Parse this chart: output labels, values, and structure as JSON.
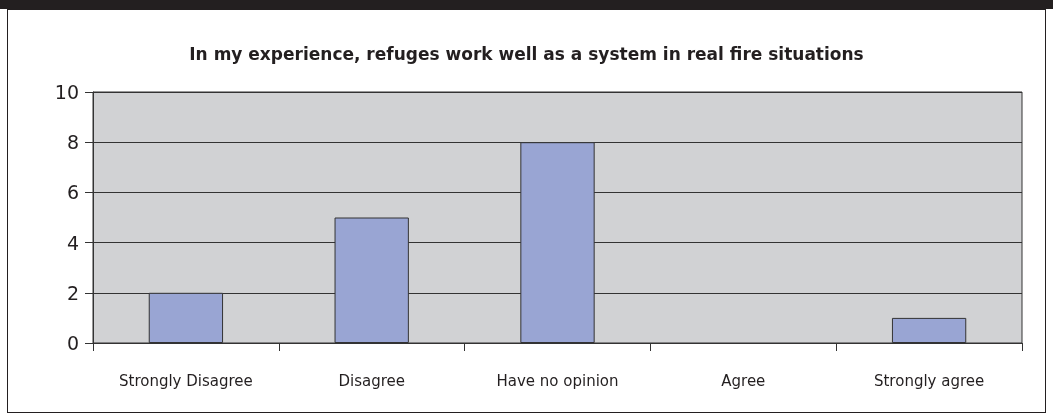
{
  "chart_data": {
    "type": "bar",
    "title": "In my experience, refuges work well as a system in real fire situations",
    "categories": [
      "Strongly Disagree",
      "Disagree",
      "Have no opinion",
      "Agree",
      "Strongly agree"
    ],
    "values": [
      2,
      5,
      8,
      0,
      1
    ],
    "color": "#99a5d3",
    "ylim": [
      0,
      10
    ],
    "yticks": [
      0,
      2,
      4,
      6,
      8,
      10
    ],
    "grid": "y"
  }
}
